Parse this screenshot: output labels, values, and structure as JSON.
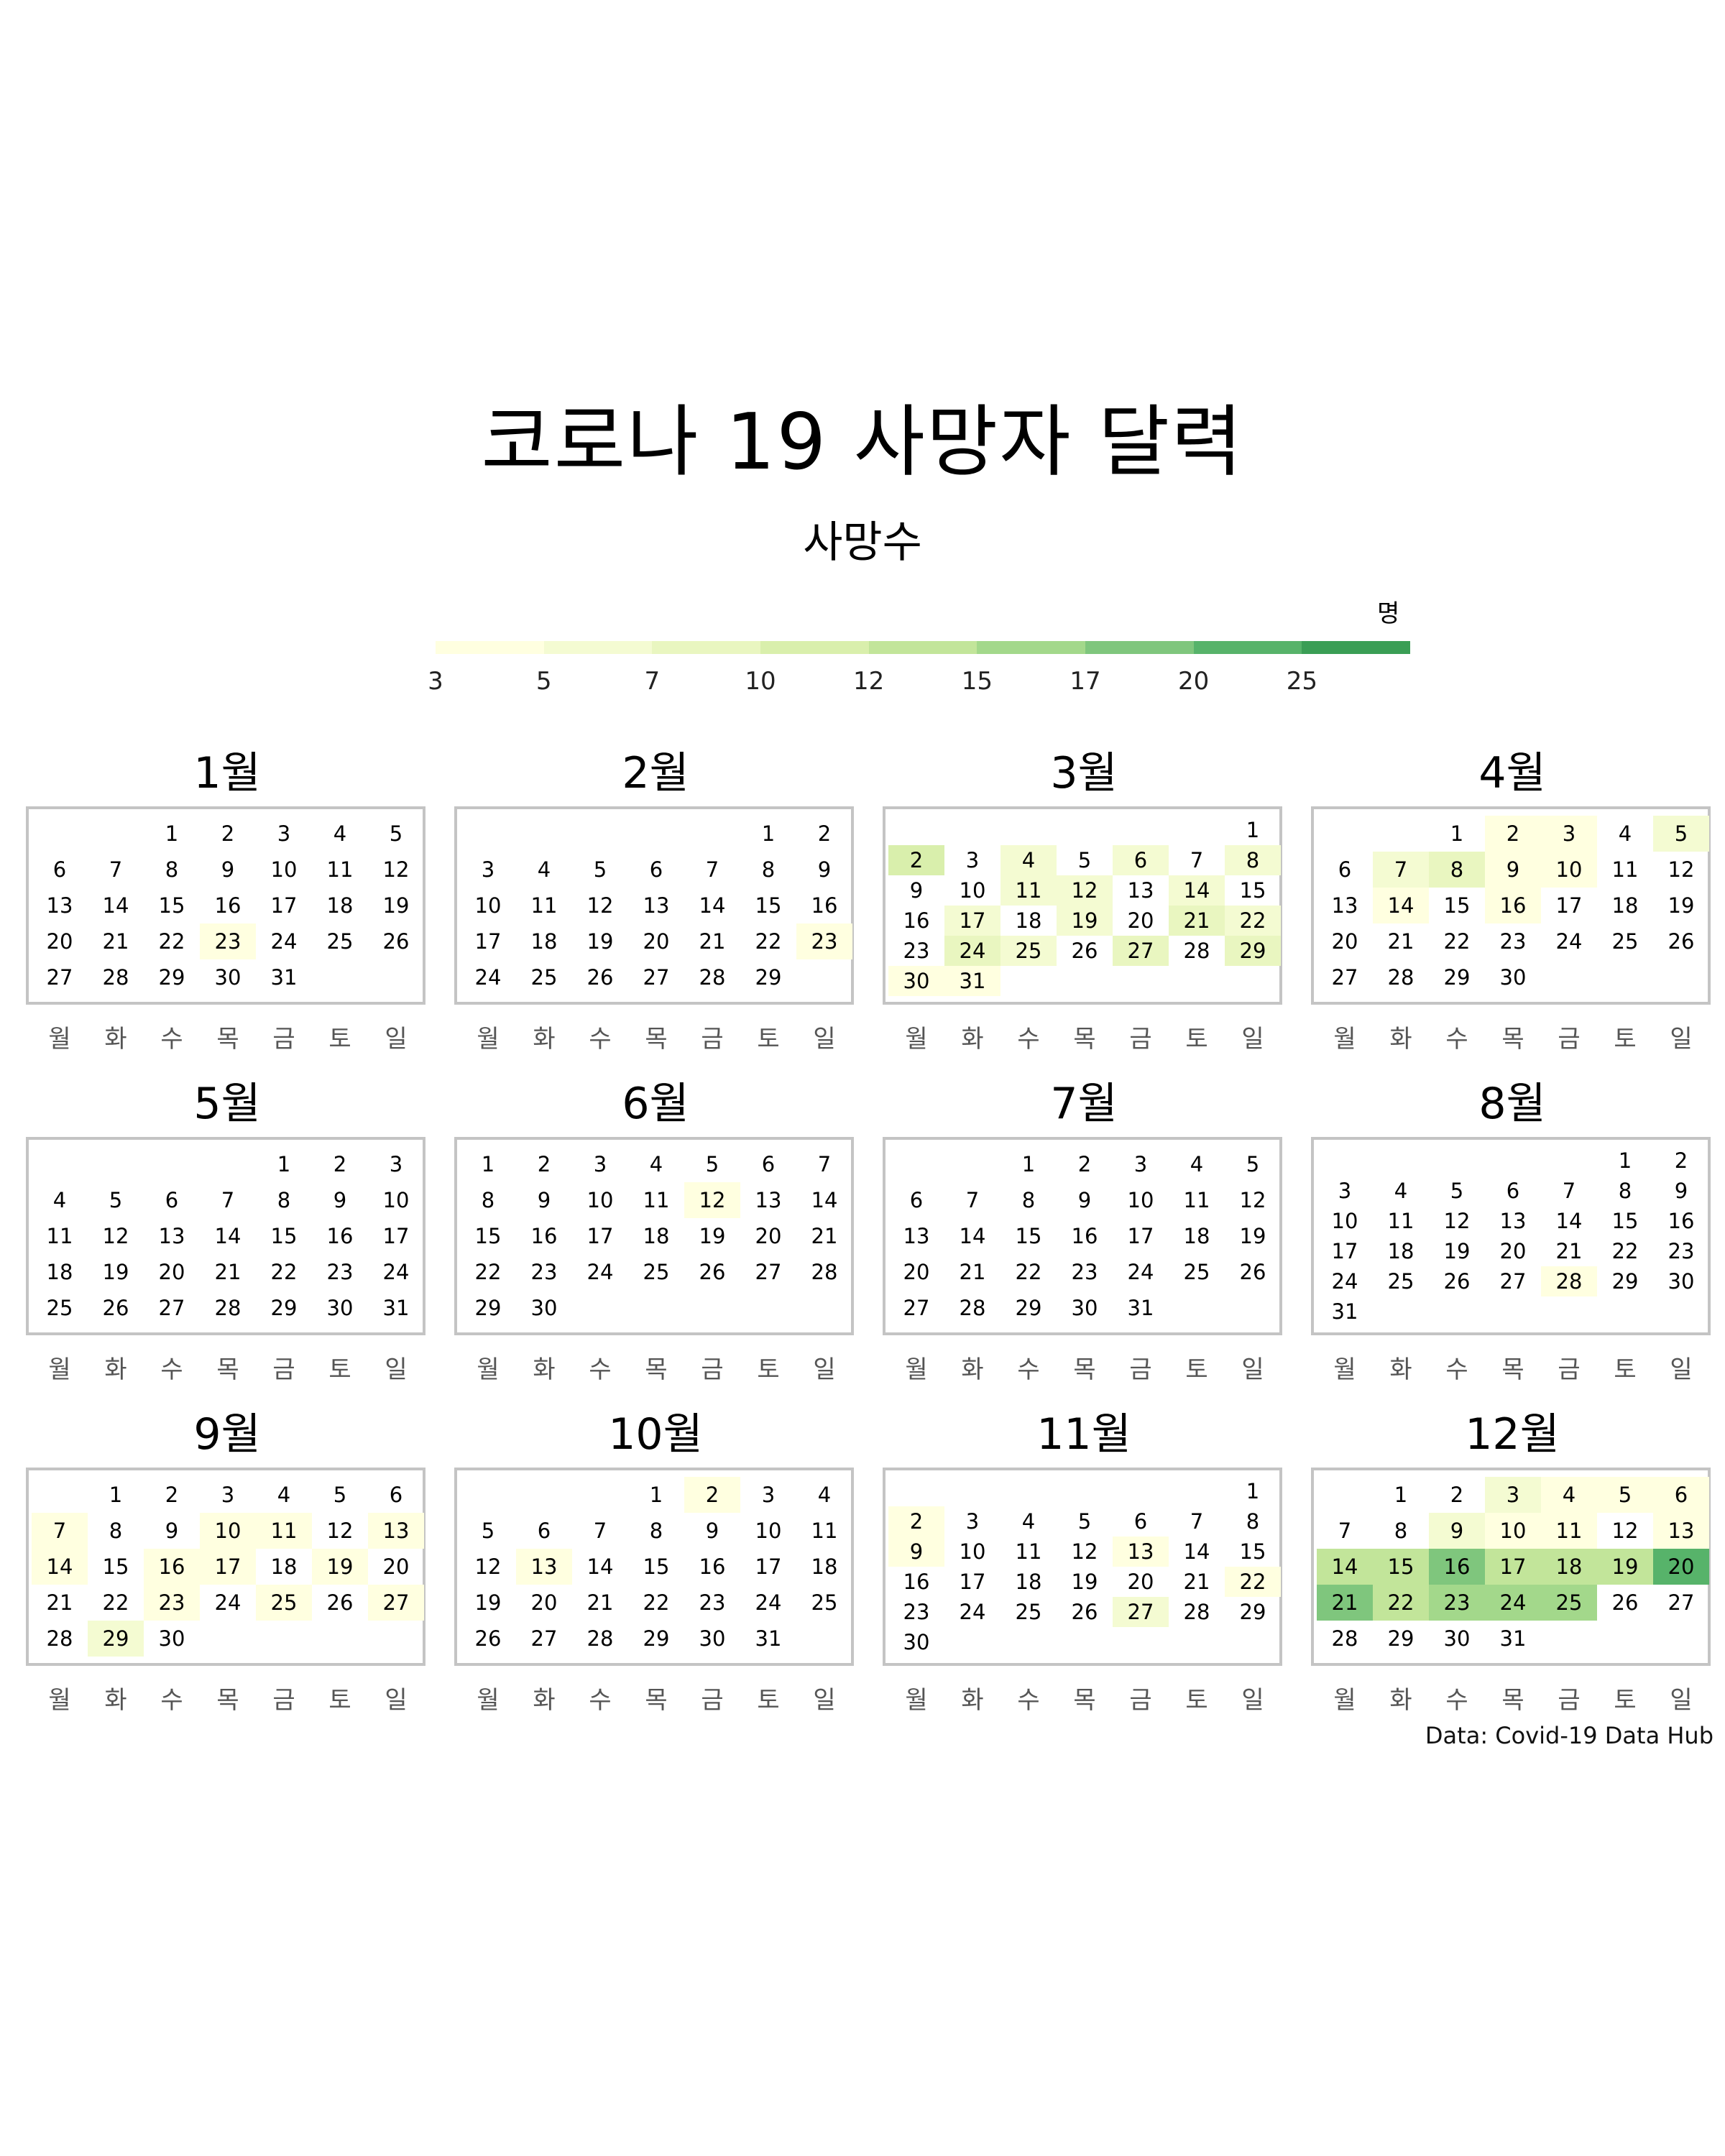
{
  "title": "코로나 19 사망자 달력",
  "subtitle": "사망수",
  "legend": {
    "unit": "명",
    "ticks": [
      "3",
      "5",
      "7",
      "10",
      "12",
      "15",
      "17",
      "20",
      "25"
    ],
    "colors": [
      "#ffffe0",
      "#f4fbd2",
      "#e9f6c0",
      "#d9efac",
      "#c2e59a",
      "#a3d88b",
      "#7fc67d",
      "#57b36a",
      "#3a9e55"
    ]
  },
  "weekdays": [
    "월",
    "화",
    "수",
    "목",
    "금",
    "토",
    "일"
  ],
  "source": "Data: Covid-19 Data Hub",
  "chart_data": {
    "type": "heatmap",
    "title": "코로나 19 사망자 달력",
    "subtitle": "사망수",
    "legend_title": "명",
    "legend_thresholds": [
      3,
      5,
      7,
      10,
      12,
      15,
      17,
      20,
      25
    ],
    "year_weekday_start": "월",
    "months": [
      {
        "label": "1월",
        "days": 31,
        "first_weekday": 2,
        "levels": {
          "23": 0
        }
      },
      {
        "label": "2월",
        "days": 29,
        "first_weekday": 5,
        "levels": {
          "23": 0
        }
      },
      {
        "label": "3월",
        "days": 31,
        "first_weekday": 6,
        "levels": {
          "2": 3,
          "4": 1,
          "6": 1,
          "8": 1,
          "11": 1,
          "12": 1,
          "14": 1,
          "17": 1,
          "19": 1,
          "21": 2,
          "22": 1,
          "24": 2,
          "25": 1,
          "27": 2,
          "29": 2,
          "30": 0,
          "31": 0
        }
      },
      {
        "label": "4월",
        "days": 30,
        "first_weekday": 2,
        "levels": {
          "2": 0,
          "3": 0,
          "5": 1,
          "7": 1,
          "8": 2,
          "9": 0,
          "10": 0,
          "14": 0,
          "16": 0
        }
      },
      {
        "label": "5월",
        "days": 31,
        "first_weekday": 4,
        "levels": {}
      },
      {
        "label": "6월",
        "days": 30,
        "first_weekday": 0,
        "levels": {
          "12": 0
        }
      },
      {
        "label": "7월",
        "days": 31,
        "first_weekday": 2,
        "levels": {}
      },
      {
        "label": "8월",
        "days": 31,
        "first_weekday": 5,
        "levels": {
          "28": 0
        }
      },
      {
        "label": "9월",
        "days": 30,
        "first_weekday": 1,
        "levels": {
          "7": 0,
          "10": 0,
          "11": 0,
          "13": 0,
          "14": 0,
          "16": 0,
          "17": 0,
          "19": 0,
          "23": 0,
          "25": 0,
          "27": 0,
          "29": 1
        }
      },
      {
        "label": "10월",
        "days": 31,
        "first_weekday": 3,
        "levels": {
          "2": 0,
          "13": 0
        }
      },
      {
        "label": "11월",
        "days": 30,
        "first_weekday": 6,
        "levels": {
          "2": 0,
          "9": 0,
          "13": 0,
          "22": 0,
          "27": 1
        }
      },
      {
        "label": "12월",
        "days": 31,
        "first_weekday": 1,
        "levels": {
          "3": 1,
          "4": 0,
          "5": 0,
          "6": 0,
          "9": 1,
          "10": 0,
          "11": 0,
          "13": 0,
          "14": 4,
          "15": 4,
          "16": 6,
          "17": 4,
          "18": 4,
          "19": 4,
          "20": 7,
          "21": 6,
          "22": 4,
          "23": 5,
          "24": 5,
          "25": 5
        }
      }
    ]
  }
}
